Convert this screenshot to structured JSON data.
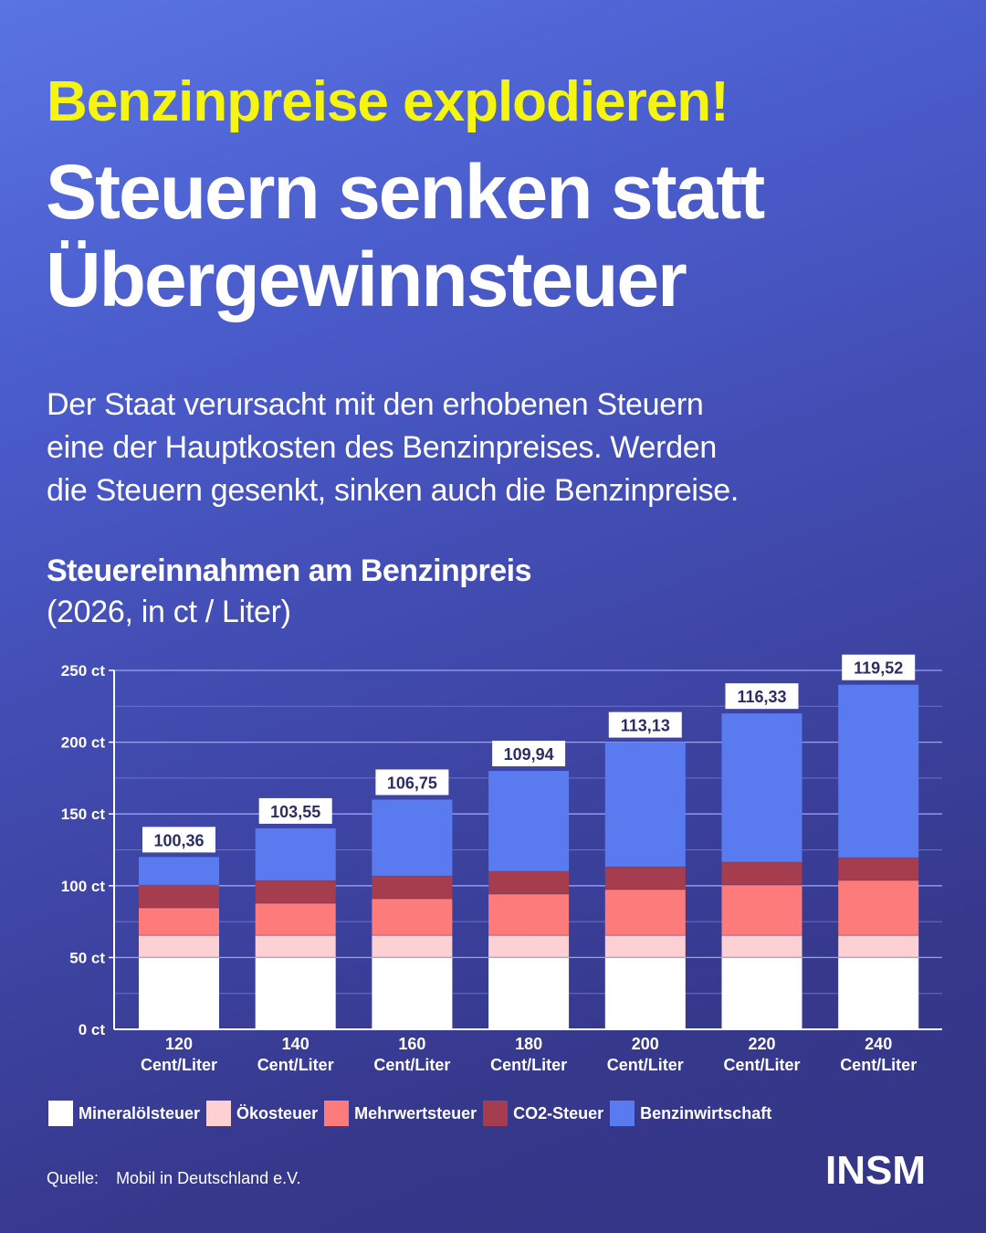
{
  "header": {
    "kicker": "Benzinpreise explodieren!",
    "headline_line1": "Steuern senken statt",
    "headline_line2": "Übergewinnsteuer"
  },
  "intro": {
    "line1": "Der Staat verursacht mit den erhobenen Steuern",
    "line2": "eine der Hauptkosten des Benzinpreises. Werden",
    "line3": "die Steuern gesenkt, sinken auch die Benzinpreise."
  },
  "chart_data": {
    "type": "bar",
    "stacked": true,
    "title": "Steuereinnahmen am Benzinpreis",
    "subtitle": "(2026, in ct / Liter)",
    "xlabel": "",
    "ylabel": "",
    "ylim": [
      0,
      250
    ],
    "yticks": [
      0,
      50,
      100,
      150,
      200,
      250
    ],
    "ytick_labels": [
      "0 ct",
      "50 ct",
      "100 ct",
      "150 ct",
      "200 ct",
      "250 ct"
    ],
    "minor_gridlines_every": 25,
    "grid": true,
    "categories": [
      "120",
      "140",
      "160",
      "180",
      "200",
      "220",
      "240"
    ],
    "category_unit": "Cent/Liter",
    "series": [
      {
        "name": "Mineralölsteuer",
        "color": "#ffffff",
        "values": [
          50.1,
          50.1,
          50.1,
          50.1,
          50.1,
          50.1,
          50.1
        ]
      },
      {
        "name": "Ökosteuer",
        "color": "#fdd0d3",
        "values": [
          15.35,
          15.35,
          15.35,
          15.35,
          15.35,
          15.35,
          15.35
        ]
      },
      {
        "name": "Mehrwertsteuer",
        "color": "#fd7b7a",
        "values": [
          19.16,
          22.35,
          25.55,
          28.74,
          31.93,
          35.13,
          38.32
        ]
      },
      {
        "name": "CO2-Steuer",
        "color": "#a63d4f",
        "values": [
          15.75,
          15.75,
          15.75,
          15.75,
          15.75,
          15.75,
          15.75
        ]
      },
      {
        "name": "Benzinwirtschaft",
        "color": "#5a7bf0",
        "values": [
          19.64,
          36.45,
          53.25,
          70.06,
          86.87,
          103.67,
          120.48
        ]
      }
    ],
    "totals": [
      120,
      140,
      160,
      180,
      200,
      220,
      240
    ],
    "data_labels": [
      "100,36",
      "103,55",
      "106,75",
      "109,94",
      "113,13",
      "116,33",
      "119,52"
    ],
    "data_labels_meaning": "Summe Steuern (ct/Liter)",
    "legend_position": "bottom-left"
  },
  "footer": {
    "source_label": "Quelle:",
    "source_name": "Mobil in Deutschland e.V.",
    "logo": "INSM"
  },
  "colors": {
    "kicker": "#f5f50f",
    "label_text": "#2b2d63",
    "background_top": "#5a74e4",
    "background_bottom": "#343585"
  }
}
